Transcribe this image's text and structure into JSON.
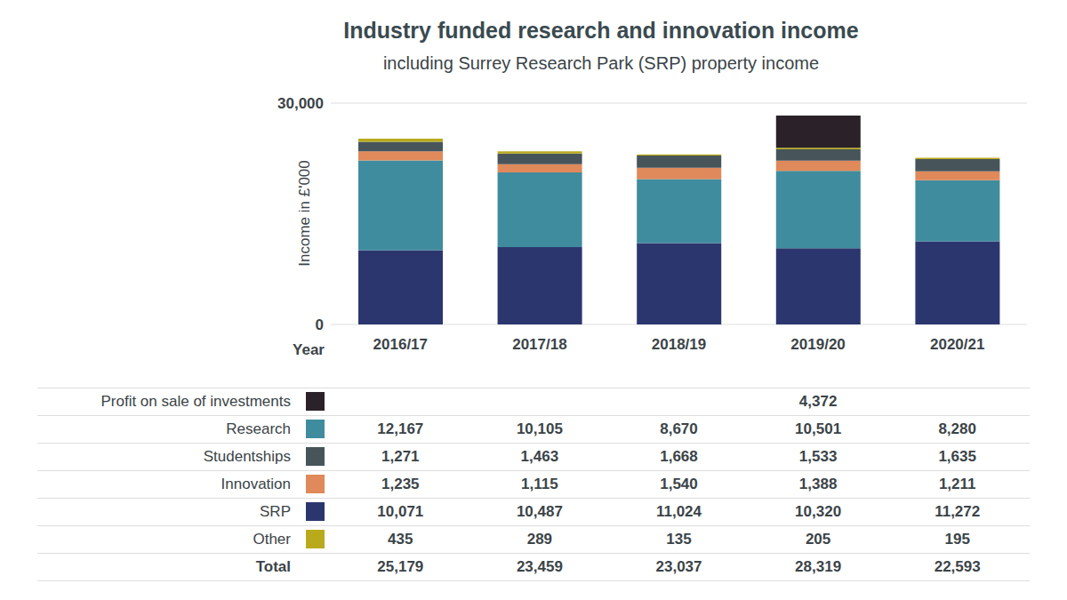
{
  "chart_data": {
    "type": "bar",
    "stacked": true,
    "title": "Industry funded research and innovation income",
    "subtitle": "including Surrey Research Park (SRP) property income",
    "x_label": "Year",
    "y_label": "Income in £'000",
    "categories": [
      "2016/17",
      "2017/18",
      "2018/19",
      "2019/20",
      "2020/21"
    ],
    "ylim": [
      0,
      30000
    ],
    "yticks": [
      0,
      {
        "value": 30000,
        "label": "30,000"
      }
    ],
    "grid": true,
    "series": [
      {
        "name": "SRP",
        "color": "#2c366e",
        "values": [
          10071,
          10487,
          11024,
          10320,
          11272
        ]
      },
      {
        "name": "Research",
        "color": "#3f8c9e",
        "values": [
          12167,
          10105,
          8670,
          10501,
          8280
        ]
      },
      {
        "name": "Innovation",
        "color": "#e0895a",
        "values": [
          1235,
          1115,
          1540,
          1388,
          1211
        ]
      },
      {
        "name": "Studentships",
        "color": "#47555a",
        "values": [
          1271,
          1463,
          1668,
          1533,
          1635
        ]
      },
      {
        "name": "Other",
        "color": "#b9aa1c",
        "values": [
          435,
          289,
          135,
          205,
          195
        ]
      },
      {
        "name": "Profit on sale of investments",
        "color": "#2a2228",
        "values": [
          null,
          null,
          null,
          4372,
          null
        ]
      }
    ]
  },
  "table": {
    "rows": [
      {
        "label": "Profit on sale of investments",
        "color": "#2a2228",
        "values": [
          null,
          null,
          null,
          "4,372",
          null
        ]
      },
      {
        "label": "Research",
        "color": "#3f8c9e",
        "values": [
          "12,167",
          "10,105",
          "8,670",
          "10,501",
          "8,280"
        ]
      },
      {
        "label": "Studentships",
        "color": "#47555a",
        "values": [
          "1,271",
          "1,463",
          "1,668",
          "1,533",
          "1,635"
        ]
      },
      {
        "label": "Innovation",
        "color": "#e0895a",
        "values": [
          "1,235",
          "1,115",
          "1,540",
          "1,388",
          "1,211"
        ]
      },
      {
        "label": "SRP",
        "color": "#2c366e",
        "values": [
          "10,071",
          "10,487",
          "11,024",
          "10,320",
          "11,272"
        ]
      },
      {
        "label": "Other",
        "color": "#b9aa1c",
        "values": [
          "435",
          "289",
          "135",
          "205",
          "195"
        ]
      }
    ],
    "total": {
      "label": "Total",
      "values": [
        "25,179",
        "23,459",
        "23,037",
        "28,319",
        "22,593"
      ]
    }
  }
}
